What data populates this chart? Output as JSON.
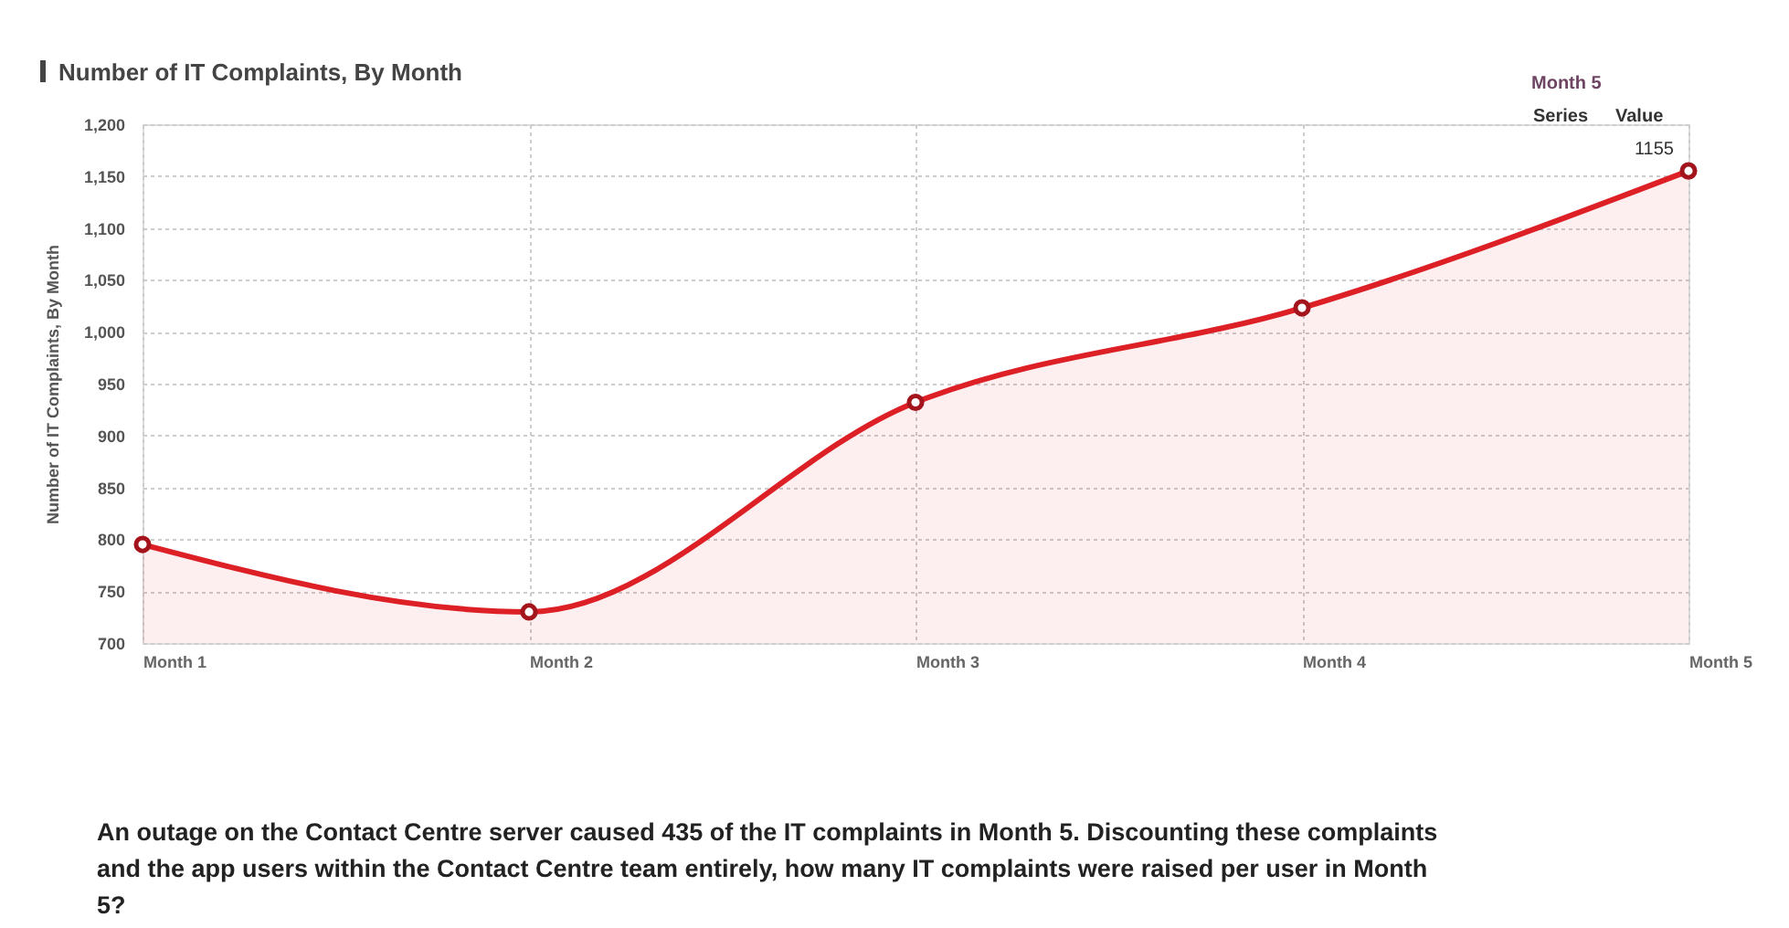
{
  "chart_data": {
    "type": "area",
    "title": "Number of IT Complaints, By Month",
    "ylabel": "Number of IT Complaints, By Month",
    "categories": [
      "Month 1",
      "Month 2",
      "Month 3",
      "Month 4",
      "Month 5"
    ],
    "series": [
      {
        "color": "#dd1f26",
        "values": [
          795,
          730,
          932,
          1023,
          1155
        ],
        "value_labels": [
          null,
          null,
          null,
          null,
          "1155"
        ]
      }
    ],
    "ylim": [
      700,
      1200
    ],
    "yticks": [
      {
        "value": 700,
        "label": "700"
      },
      {
        "value": 750,
        "label": "750"
      },
      {
        "value": 800,
        "label": "800"
      },
      {
        "value": 850,
        "label": "850"
      },
      {
        "value": 900,
        "label": "900"
      },
      {
        "value": 950,
        "label": "950"
      },
      {
        "value": 1000,
        "label": "1,000"
      },
      {
        "value": 1050,
        "label": "1,050"
      },
      {
        "value": 1100,
        "label": "1,100"
      },
      {
        "value": 1150,
        "label": "1,150"
      },
      {
        "value": 1200,
        "label": "1,200"
      }
    ],
    "grid": true,
    "marker": "circle",
    "line_style": "solid",
    "annotations": [
      "Series",
      "Value",
      "An outage on the Contact Centre server caused 435 of the IT complaints in Month 5. Discounting these complaints and the app users within the Contact Centre team entirely, how many IT complaints were raised per user in Month 5?"
    ]
  }
}
